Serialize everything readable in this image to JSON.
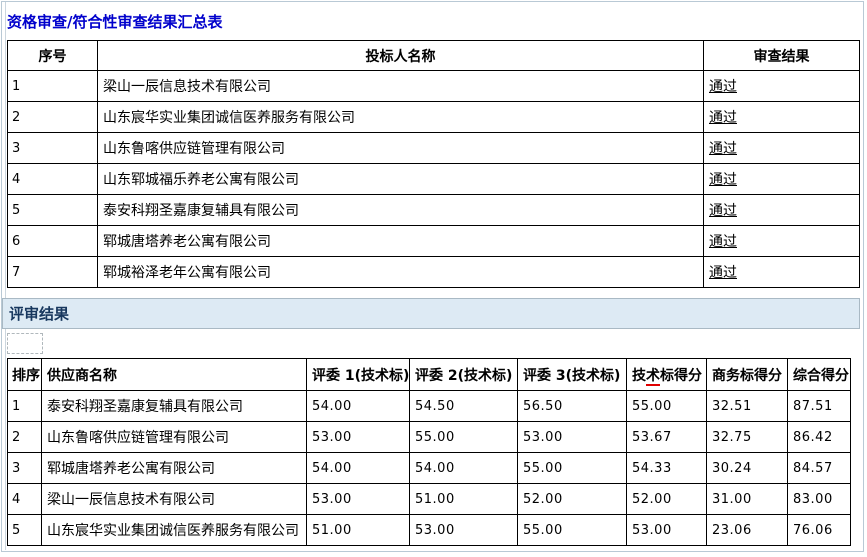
{
  "page": {
    "background": "#ffffff",
    "frame_border_color": "#b9c9d5"
  },
  "section1": {
    "title": "资格审查/符合性审查结果汇总表",
    "title_color": "#0000cc",
    "table": {
      "headers": [
        "序号",
        "投标人名称",
        "审查结果"
      ],
      "rows": [
        {
          "no": "1",
          "name": "梁山一辰信息技术有限公司",
          "result": "通过"
        },
        {
          "no": "2",
          "name": "山东宸华实业集团诚信医养服务有限公司",
          "result": "通过"
        },
        {
          "no": "3",
          "name": "山东鲁喀供应链管理有限公司",
          "result": "通过"
        },
        {
          "no": "4",
          "name": "山东郓城福乐养老公寓有限公司",
          "result": "通过"
        },
        {
          "no": "5",
          "name": "泰安科翔圣嘉康复辅具有限公司",
          "result": "通过"
        },
        {
          "no": "6",
          "name": "郓城唐塔养老公寓有限公司",
          "result": "通过"
        },
        {
          "no": "7",
          "name": "郓城裕泽老年公寓有限公司",
          "result": "通过"
        }
      ]
    }
  },
  "section2": {
    "title": "评审结果",
    "title_color": "#17375e",
    "bar_background": "#ddeaf4",
    "table": {
      "headers": [
        "排序",
        "供应商名称",
        "评委 1(技术标)",
        "评委 2(技术标)",
        "评委 3(技术标)",
        "技术标得分",
        "商务标得分",
        "综合得分"
      ],
      "tech_header_parts": {
        "pre": "技",
        "marked": "术",
        "post": "标得分"
      },
      "spellcheck_color": "#e00000",
      "rows": [
        {
          "rank": "1",
          "name": "泰安科翔圣嘉康复辅具有限公司",
          "j1": "54.00",
          "j2": "54.50",
          "j3": "56.50",
          "tech": "55.00",
          "biz": "32.51",
          "total": "87.51"
        },
        {
          "rank": "2",
          "name": "山东鲁喀供应链管理有限公司",
          "j1": "53.00",
          "j2": "55.00",
          "j3": "53.00",
          "tech": "53.67",
          "biz": "32.75",
          "total": "86.42"
        },
        {
          "rank": "3",
          "name": "郓城唐塔养老公寓有限公司",
          "j1": "54.00",
          "j2": "54.00",
          "j3": "55.00",
          "tech": "54.33",
          "biz": "30.24",
          "total": "84.57"
        },
        {
          "rank": "4",
          "name": "梁山一辰信息技术有限公司",
          "j1": "53.00",
          "j2": "51.00",
          "j3": "52.00",
          "tech": "52.00",
          "biz": "31.00",
          "total": "83.00"
        },
        {
          "rank": "5",
          "name": "山东宸华实业集团诚信医养服务有限公司",
          "j1": "51.00",
          "j2": "53.00",
          "j3": "55.00",
          "tech": "53.00",
          "biz": "23.06",
          "total": "76.06"
        }
      ]
    }
  }
}
